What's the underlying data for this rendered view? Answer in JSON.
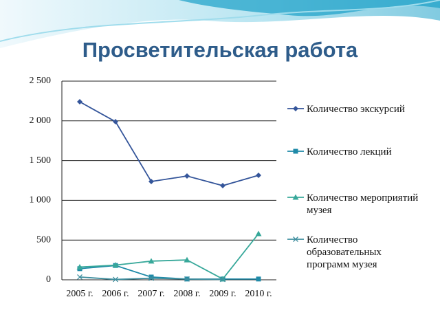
{
  "chart_data": {
    "type": "line",
    "title": "Просветительская работа",
    "categories": [
      "2005 г.",
      "2006 г.",
      "2007 г.",
      "2008 г.",
      "2009 г.",
      "2010 г."
    ],
    "ylim": [
      0,
      2500
    ],
    "yticks": [
      0,
      {
        "value": 500,
        "label": "500"
      },
      {
        "value": 1000,
        "label": "1 000"
      },
      {
        "value": 1500,
        "label": "1 500"
      },
      {
        "value": 2000,
        "label": "2 000"
      },
      {
        "value": 2500,
        "label": "2 500"
      }
    ],
    "grid": true,
    "legend": "right",
    "series": [
      {
        "name": "Количество экскурсий",
        "color": "#34559a",
        "values": [
          2240,
          1990,
          1237,
          1306,
          1185,
          1315
        ]
      },
      {
        "name": "Количество лекций",
        "color": "#1f8aa8",
        "values": [
          140,
          180,
          35,
          10,
          10,
          10
        ]
      },
      {
        "name": "Количество мероприятий музея",
        "color": "#37a89a",
        "values": [
          160,
          185,
          235,
          250,
          10,
          580
        ]
      },
      {
        "name": "Количество образовательных программ музея",
        "color": "#3f8f9f",
        "values": [
          35,
          5,
          20,
          10,
          5,
          null
        ]
      }
    ]
  }
}
